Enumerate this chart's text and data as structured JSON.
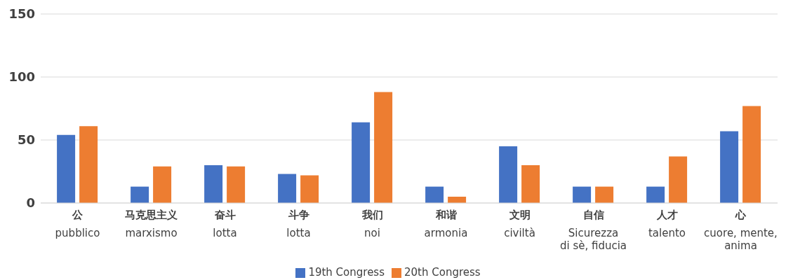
{
  "chart_data": {
    "type": "bar",
    "categories": [
      "公\npubblico",
      "马克思主义\nmarxismo",
      "奋斗\nlotta",
      "斗争\nlotta",
      "我们\nnoi",
      "和谐\narmonia",
      "文明\nciviltà",
      "自信\nSicurezza\ndi sè, fiducia",
      "人才\ntalento",
      "心\ncuore, mente,\nanima"
    ],
    "series": [
      {
        "name": "19th Congress",
        "color": "#4472c4",
        "values": [
          54,
          13,
          30,
          23,
          64,
          13,
          45,
          13,
          13,
          57
        ]
      },
      {
        "name": "20th Congress",
        "color": "#ed7d31",
        "values": [
          61,
          29,
          29,
          22,
          88,
          5,
          30,
          13,
          37,
          77
        ]
      }
    ],
    "ylim": [
      0,
      150
    ],
    "yticks": [
      0,
      50,
      100,
      150
    ],
    "grid": "y",
    "legend": "bottom"
  }
}
